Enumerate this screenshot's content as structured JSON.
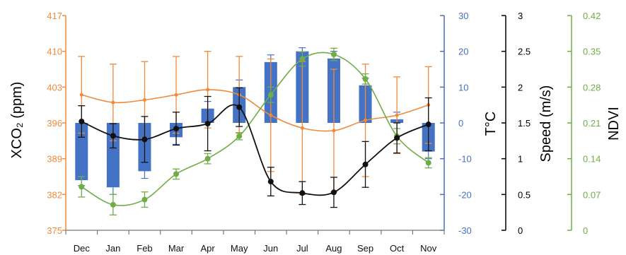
{
  "chart_data": {
    "type": "combo",
    "categories": [
      "Dec",
      "Jan",
      "Feb",
      "Mar",
      "Apr",
      "May",
      "Jun",
      "Jul",
      "Aug",
      "Sep",
      "Oct",
      "Nov"
    ],
    "axes": {
      "xco2": {
        "label": "XCO₂ (ppm)",
        "min": 375,
        "max": 417,
        "ticks": [
          375,
          382,
          389,
          396,
          403,
          410,
          417
        ],
        "color": "#f08a3c"
      },
      "temp": {
        "label": "T°C",
        "min": -30,
        "max": 30,
        "ticks": [
          -30,
          -20,
          -10,
          0,
          10,
          20,
          30
        ],
        "color": "#4472c4"
      },
      "speed": {
        "label": "Speed (m/s)",
        "min": 0,
        "max": 3,
        "ticks": [
          "0",
          "0.5",
          "1",
          "1.5",
          "2",
          "2.5",
          "3"
        ],
        "color": "#000000"
      },
      "ndvi": {
        "label": "NDVI",
        "min": 0,
        "max": 0.42,
        "ticks": [
          "0",
          "0.07",
          "0.14",
          "0.21",
          "0.28",
          "0.35",
          "0.42"
        ],
        "color": "#70ad47"
      }
    },
    "series": [
      {
        "name": "XCO2",
        "axis": "xco2",
        "style": "line",
        "color": "#f08a3c",
        "values": [
          401.5,
          400,
          400.5,
          401.5,
          402.5,
          401.5,
          397.5,
          395,
          394.5,
          396.5,
          397.5,
          399.5
        ],
        "error": [
          7.5,
          7.5,
          7.5,
          7.5,
          7.5,
          7.5,
          11,
          13,
          12,
          11,
          7.5,
          7.5
        ]
      },
      {
        "name": "Temperature",
        "axis": "temp",
        "style": "bar",
        "color": "#4472c4",
        "values": [
          -16,
          -18,
          -13.5,
          -4,
          4,
          10,
          17,
          20,
          18,
          10.5,
          1,
          -8
        ],
        "error": [
          1.5,
          2,
          2,
          2,
          2,
          2,
          2,
          1,
          2,
          2,
          2,
          2
        ]
      },
      {
        "name": "Wind speed",
        "axis": "speed",
        "style": "line",
        "color": "#111111",
        "values": [
          1.52,
          1.32,
          1.27,
          1.42,
          1.49,
          1.72,
          0.68,
          0.52,
          0.53,
          0.92,
          1.29,
          1.48
        ],
        "error": [
          0.22,
          0.17,
          0.32,
          0.23,
          0.38,
          0.27,
          0.2,
          0.16,
          0.21,
          0.32,
          0.21,
          0.37
        ]
      },
      {
        "name": "NDVI",
        "axis": "ndvi",
        "style": "line",
        "color": "#70ad47",
        "values": [
          0.085,
          0.05,
          0.06,
          0.11,
          0.14,
          0.184,
          0.265,
          0.335,
          0.344,
          0.296,
          0.184,
          0.132
        ],
        "error": [
          0.02,
          0.02,
          0.015,
          0.01,
          0.01,
          0.007,
          0.015,
          0.014,
          0.012,
          0.01,
          0.015,
          0.01
        ]
      }
    ],
    "grid": false,
    "legend": "none"
  }
}
